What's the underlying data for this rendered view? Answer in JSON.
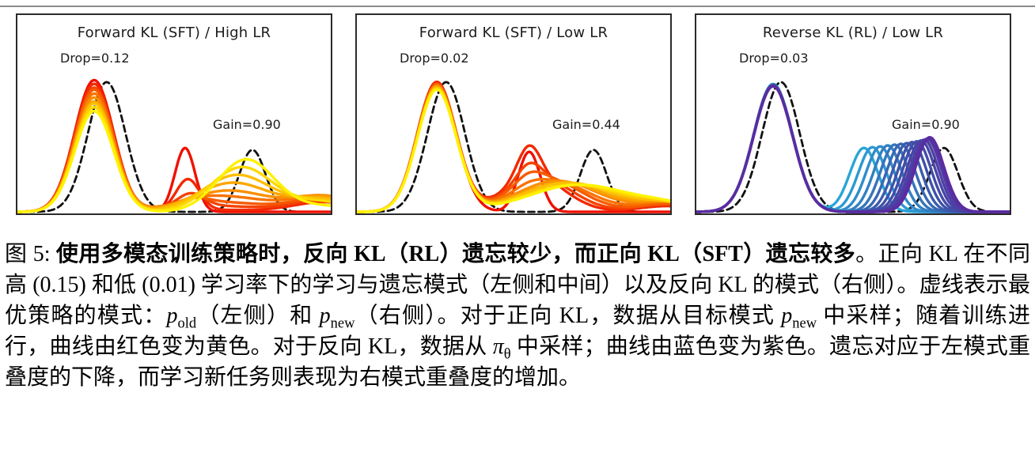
{
  "figure_note": "Figure 5 of a paper: three density plots comparing forgetting/learning under Forward KL (SFT) vs Reverse KL (RL). Curves are Gaussian mixtures; in components c=center, s=std, h=peak height, all in fractions of the axes box (x: 0-1 left to right, h: 0-1 of box height).",
  "chart_data": [
    {
      "type": "line",
      "title": "Forward KL (SFT) / High LR",
      "annotations": [
        {
          "text": "Drop=0.12",
          "x": 0.14,
          "y": 0.76
        },
        {
          "text": "Gain=0.90",
          "x": 0.63,
          "y": 0.43
        }
      ],
      "axis": {
        "x_range": [
          0,
          1
        ],
        "y_range": [
          0,
          1
        ],
        "ticks": "none",
        "frame": "box"
      },
      "reference": {
        "style": "dashed",
        "color": "#111111",
        "meaning": "optimal policy modes p_old (left) and p_new (right)",
        "components": [
          {
            "c": 0.285,
            "s": 0.06,
            "h": 0.67
          },
          {
            "c": 0.75,
            "s": 0.042,
            "h": 0.32
          }
        ]
      },
      "series_meaning": "training progress: red (early) to yellow (late)",
      "series": [
        {
          "color": "#f01000",
          "components": [
            {
              "c": 0.245,
              "s": 0.062,
              "h": 0.68
            },
            {
              "c": 0.535,
              "s": 0.032,
              "h": 0.33
            }
          ]
        },
        {
          "color": "#f22900",
          "components": [
            {
              "c": 0.245,
              "s": 0.062,
              "h": 0.66
            },
            {
              "c": 0.544,
              "s": 0.037,
              "h": 0.16
            },
            {
              "c": 0.614,
              "s": 0.161,
              "h": 0.01
            },
            {
              "c": 0.98,
              "s": 0.1,
              "h": 0.05
            }
          ]
        },
        {
          "color": "#f44200",
          "components": [
            {
              "c": 0.245,
              "s": 0.062,
              "h": 0.64
            },
            {
              "c": 0.553,
              "s": 0.043,
              "h": 0.07
            },
            {
              "c": 0.629,
              "s": 0.152,
              "h": 0.03
            },
            {
              "c": 0.98,
              "s": 0.1,
              "h": 0.06
            }
          ]
        },
        {
          "color": "#f65b00",
          "components": [
            {
              "c": 0.245,
              "s": 0.062,
              "h": 0.63
            },
            {
              "c": 0.561,
              "s": 0.048,
              "h": 0.03
            },
            {
              "c": 0.643,
              "s": 0.144,
              "h": 0.05
            },
            {
              "c": 0.98,
              "s": 0.1,
              "h": 0.07
            }
          ]
        },
        {
          "color": "#f87300",
          "components": [
            {
              "c": 0.245,
              "s": 0.062,
              "h": 0.61
            },
            {
              "c": 0.57,
              "s": 0.054,
              "h": 0.01
            },
            {
              "c": 0.657,
              "s": 0.135,
              "h": 0.08
            },
            {
              "c": 0.98,
              "s": 0.1,
              "h": 0.08
            }
          ]
        },
        {
          "color": "#fa8f00",
          "components": [
            {
              "c": 0.245,
              "s": 0.062,
              "h": 0.59
            },
            {
              "c": 0.672,
              "s": 0.126,
              "h": 0.11
            },
            {
              "c": 0.98,
              "s": 0.1,
              "h": 0.08
            }
          ]
        },
        {
          "color": "#fca700",
          "components": [
            {
              "c": 0.245,
              "s": 0.062,
              "h": 0.57
            },
            {
              "c": 0.687,
              "s": 0.116,
              "h": 0.15
            },
            {
              "c": 0.98,
              "s": 0.1,
              "h": 0.07
            }
          ]
        },
        {
          "color": "#fdc000",
          "components": [
            {
              "c": 0.245,
              "s": 0.062,
              "h": 0.56
            },
            {
              "c": 0.701,
              "s": 0.108,
              "h": 0.19
            },
            {
              "c": 0.98,
              "s": 0.1,
              "h": 0.06
            }
          ]
        },
        {
          "color": "#fed900",
          "components": [
            {
              "c": 0.245,
              "s": 0.062,
              "h": 0.54
            },
            {
              "c": 0.716,
              "s": 0.099,
              "h": 0.23
            },
            {
              "c": 0.98,
              "s": 0.1,
              "h": 0.05
            }
          ]
        },
        {
          "color": "#fff200",
          "components": [
            {
              "c": 0.245,
              "s": 0.062,
              "h": 0.52
            },
            {
              "c": 0.73,
              "s": 0.09,
              "h": 0.27
            },
            {
              "c": 0.98,
              "s": 0.1,
              "h": 0.03
            }
          ]
        }
      ]
    },
    {
      "type": "line",
      "title": "Forward KL (SFT) / Low LR",
      "annotations": [
        {
          "text": "Drop=0.02",
          "x": 0.14,
          "y": 0.76
        },
        {
          "text": "Gain=0.44",
          "x": 0.63,
          "y": 0.43
        }
      ],
      "axis": {
        "x_range": [
          0,
          1
        ],
        "y_range": [
          0,
          1
        ],
        "ticks": "none",
        "frame": "box"
      },
      "reference": {
        "style": "dashed",
        "color": "#111111",
        "meaning": "optimal policy modes p_old (left) and p_new (right)",
        "components": [
          {
            "c": 0.285,
            "s": 0.06,
            "h": 0.67
          },
          {
            "c": 0.755,
            "s": 0.042,
            "h": 0.32
          }
        ]
      },
      "series_meaning": "training progress: red (early) to yellow (late)",
      "series": [
        {
          "color": "#f01000",
          "components": [
            {
              "c": 0.255,
              "s": 0.062,
              "h": 0.67
            },
            {
              "c": 0.55,
              "s": 0.035,
              "h": 0.31
            }
          ]
        },
        {
          "color": "#f22900",
          "components": [
            {
              "c": 0.255,
              "s": 0.062,
              "h": 0.67
            },
            {
              "c": 0.55,
              "s": 0.037,
              "h": 0.17
            },
            {
              "c": 0.568,
              "s": 0.098,
              "h": 0.175
            },
            {
              "c": 0.99,
              "s": 0.09,
              "h": 0.03
            }
          ]
        },
        {
          "color": "#f44200",
          "components": [
            {
              "c": 0.255,
              "s": 0.062,
              "h": 0.66
            },
            {
              "c": 0.55,
              "s": 0.039,
              "h": 0.09
            },
            {
              "c": 0.585,
              "s": 0.105,
              "h": 0.17
            },
            {
              "c": 0.99,
              "s": 0.09,
              "h": 0.04
            }
          ]
        },
        {
          "color": "#f65b00",
          "components": [
            {
              "c": 0.255,
              "s": 0.062,
              "h": 0.66
            },
            {
              "c": 0.55,
              "s": 0.042,
              "h": 0.05
            },
            {
              "c": 0.603,
              "s": 0.113,
              "h": 0.17
            },
            {
              "c": 0.99,
              "s": 0.09,
              "h": 0.04
            }
          ]
        },
        {
          "color": "#f87300",
          "components": [
            {
              "c": 0.255,
              "s": 0.062,
              "h": 0.65
            },
            {
              "c": 0.55,
              "s": 0.044,
              "h": 0.02
            },
            {
              "c": 0.62,
              "s": 0.121,
              "h": 0.16
            },
            {
              "c": 0.99,
              "s": 0.09,
              "h": 0.05
            }
          ]
        },
        {
          "color": "#fa8f00",
          "components": [
            {
              "c": 0.255,
              "s": 0.062,
              "h": 0.65
            },
            {
              "c": 0.64,
              "s": 0.129,
              "h": 0.16
            },
            {
              "c": 0.99,
              "s": 0.09,
              "h": 0.05
            }
          ]
        },
        {
          "color": "#fca700",
          "components": [
            {
              "c": 0.255,
              "s": 0.062,
              "h": 0.64
            },
            {
              "c": 0.657,
              "s": 0.137,
              "h": 0.15
            },
            {
              "c": 0.99,
              "s": 0.09,
              "h": 0.05
            }
          ]
        },
        {
          "color": "#fdc000",
          "components": [
            {
              "c": 0.255,
              "s": 0.062,
              "h": 0.64
            },
            {
              "c": 0.675,
              "s": 0.145,
              "h": 0.15
            },
            {
              "c": 0.99,
              "s": 0.09,
              "h": 0.04
            }
          ]
        },
        {
          "color": "#fed900",
          "components": [
            {
              "c": 0.255,
              "s": 0.062,
              "h": 0.63
            },
            {
              "c": 0.692,
              "s": 0.152,
              "h": 0.14
            },
            {
              "c": 0.99,
              "s": 0.09,
              "h": 0.04
            }
          ]
        },
        {
          "color": "#fff200",
          "components": [
            {
              "c": 0.255,
              "s": 0.062,
              "h": 0.63
            },
            {
              "c": 0.71,
              "s": 0.16,
              "h": 0.14
            },
            {
              "c": 0.99,
              "s": 0.09,
              "h": 0.03
            }
          ]
        }
      ]
    },
    {
      "type": "line",
      "title": "Reverse KL (RL) / Low LR",
      "annotations": [
        {
          "text": "Drop=0.03",
          "x": 0.14,
          "y": 0.76
        },
        {
          "text": "Gain=0.90",
          "x": 0.64,
          "y": 0.43
        }
      ],
      "axis": {
        "x_range": [
          0,
          1
        ],
        "y_range": [
          0,
          1
        ],
        "ticks": "none",
        "frame": "box"
      },
      "reference": {
        "style": "dashed",
        "color": "#111111",
        "meaning": "optimal policy modes p_old (left) and p_new (right)",
        "components": [
          {
            "c": 0.27,
            "s": 0.06,
            "h": 0.67
          },
          {
            "c": 0.79,
            "s": 0.045,
            "h": 0.33
          }
        ]
      },
      "series_meaning": "training progress: blue (early) to purple (late)",
      "series": [
        {
          "color": "#2aa5d8",
          "components": [
            {
              "c": 0.245,
              "s": 0.062,
              "h": 0.66
            },
            {
              "c": 0.535,
              "s": 0.045,
              "h": 0.33
            }
          ]
        },
        {
          "color": "#2d99d1",
          "components": [
            {
              "c": 0.245,
              "s": 0.062,
              "h": 0.659
            },
            {
              "c": 0.562,
              "s": 0.045,
              "h": 0.334
            }
          ]
        },
        {
          "color": "#308cca",
          "components": [
            {
              "c": 0.245,
              "s": 0.062,
              "h": 0.658
            },
            {
              "c": 0.587,
              "s": 0.045,
              "h": 0.338
            }
          ]
        },
        {
          "color": "#3280c2",
          "components": [
            {
              "c": 0.245,
              "s": 0.062,
              "h": 0.657
            },
            {
              "c": 0.611,
              "s": 0.045,
              "h": 0.343
            }
          ]
        },
        {
          "color": "#3574bb",
          "components": [
            {
              "c": 0.245,
              "s": 0.062,
              "h": 0.656
            },
            {
              "c": 0.633,
              "s": 0.045,
              "h": 0.347
            }
          ]
        },
        {
          "color": "#3867b4",
          "components": [
            {
              "c": 0.245,
              "s": 0.062,
              "h": 0.655
            },
            {
              "c": 0.653,
              "s": 0.045,
              "h": 0.351
            }
          ]
        },
        {
          "color": "#3b5bad",
          "components": [
            {
              "c": 0.245,
              "s": 0.062,
              "h": 0.654
            },
            {
              "c": 0.672,
              "s": 0.045,
              "h": 0.355
            }
          ]
        },
        {
          "color": "#3e52a8",
          "components": [
            {
              "c": 0.245,
              "s": 0.062,
              "h": 0.654
            },
            {
              "c": 0.689,
              "s": 0.045,
              "h": 0.36
            }
          ]
        },
        {
          "color": "#434ca7",
          "components": [
            {
              "c": 0.245,
              "s": 0.062,
              "h": 0.653
            },
            {
              "c": 0.704,
              "s": 0.045,
              "h": 0.364
            }
          ]
        },
        {
          "color": "#4845a6",
          "components": [
            {
              "c": 0.245,
              "s": 0.062,
              "h": 0.652
            },
            {
              "c": 0.717,
              "s": 0.045,
              "h": 0.368
            }
          ]
        },
        {
          "color": "#4d3fa4",
          "components": [
            {
              "c": 0.245,
              "s": 0.062,
              "h": 0.651
            },
            {
              "c": 0.727,
              "s": 0.045,
              "h": 0.372
            }
          ]
        },
        {
          "color": "#5139a3",
          "components": [
            {
              "c": 0.245,
              "s": 0.062,
              "h": 0.65
            },
            {
              "c": 0.736,
              "s": 0.045,
              "h": 0.377
            }
          ]
        },
        {
          "color": "#5632a2",
          "components": [
            {
              "c": 0.245,
              "s": 0.062,
              "h": 0.649
            },
            {
              "c": 0.742,
              "s": 0.045,
              "h": 0.381
            }
          ]
        },
        {
          "color": "#5b2ca0",
          "components": [
            {
              "c": 0.245,
              "s": 0.062,
              "h": 0.648
            },
            {
              "c": 0.745,
              "s": 0.045,
              "h": 0.385
            }
          ]
        }
      ]
    }
  ],
  "caption": {
    "runs": [
      {
        "t": "图 5: "
      },
      {
        "t": "使用多模态训练策略时，反向 KL（RL）遗忘较少，而正向 KL（SFT）遗忘较多",
        "b": true
      },
      {
        "t": "。正向 KL 在不同高 (0.15) 和低 (0.01) 学习率下的学习与遗忘模式（左侧和中间）以及反向 KL 的模式（右侧）。虚线表示最优策略的模式："
      },
      {
        "t": "p",
        "i": true,
        "sub": "old"
      },
      {
        "t": "（左侧）和 "
      },
      {
        "t": "p",
        "i": true,
        "sub": "new"
      },
      {
        "t": "（右侧）。对于正向 KL，数据从目标模式 "
      },
      {
        "t": "p",
        "i": true,
        "sub": "new"
      },
      {
        "t": " 中采样；随着训练进行，曲线由红色变为黄色。对于反向 KL，数据从 "
      },
      {
        "t": "π",
        "i": true,
        "sub": "θ"
      },
      {
        "t": " 中采样；曲线由蓝色变为紫色。遗忘对应于左模式重叠度的下降，而学习新任务则表现为右模式重叠度的增加。"
      }
    ]
  },
  "colors": {
    "panel_border": "#2b2b2b",
    "reference_dashed": "#111111",
    "forward_kl_colormap": [
      "#f01000",
      "#fff200"
    ],
    "reverse_kl_colormap": [
      "#2aa5d8",
      "#5b2ca0"
    ],
    "top_rule": "#8c8c8c",
    "text": "#1c1c1c"
  }
}
